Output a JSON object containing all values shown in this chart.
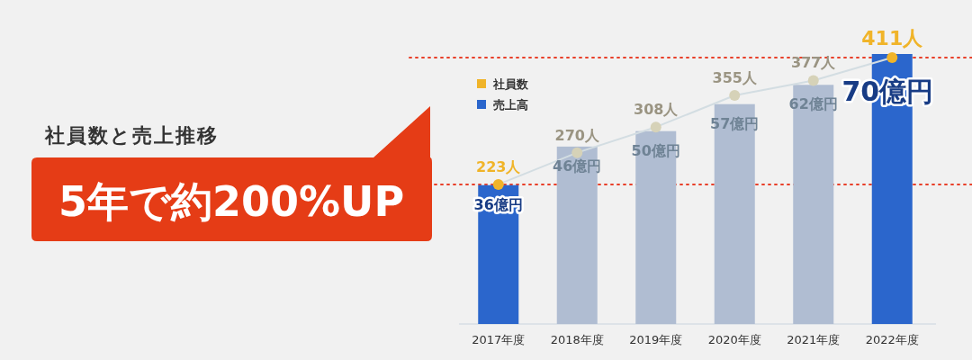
{
  "chart_data": {
    "type": "bar",
    "title": "社員数と売上推移",
    "annotations": [
      "5年で約200%UP"
    ],
    "categories": [
      "2017年度",
      "2018年度",
      "2019年度",
      "2020年度",
      "2021年度",
      "2022年度"
    ],
    "legend": "top left",
    "series": [
      {
        "name": "社員数",
        "type": "line",
        "axis": "y2",
        "marker": "circle",
        "color": "#d3dde2",
        "colors": [
          "#f0b429",
          "#d6d2b8",
          "#d6d2b8",
          "#d6d2b8",
          "#d6d2b8",
          "#f0b429"
        ],
        "values": [
          223,
          270,
          308,
          355,
          377,
          411
        ],
        "value_labels": [
          "223人",
          "270人",
          "308人",
          "355人",
          "377人",
          "411人"
        ]
      },
      {
        "name": "売上高",
        "color": "#2b66cc",
        "colors": [
          "#2b66cc",
          "#b0bdd2",
          "#b0bdd2",
          "#b0bdd2",
          "#b0bdd2",
          "#2b66cc"
        ],
        "values": [
          36,
          46,
          50,
          57,
          62,
          70
        ],
        "value_labels": [
          "36億円",
          "46億円",
          "50億円",
          "57億円",
          "62億円",
          "70億円"
        ]
      }
    ],
    "ref_lines": [
      {
        "axis": "y2",
        "value": 223,
        "color": "#e8402a",
        "line_style": "dotted"
      },
      {
        "axis": "y2",
        "value": 411,
        "color": "#e8402a",
        "line_style": "dotted"
      }
    ]
  }
}
